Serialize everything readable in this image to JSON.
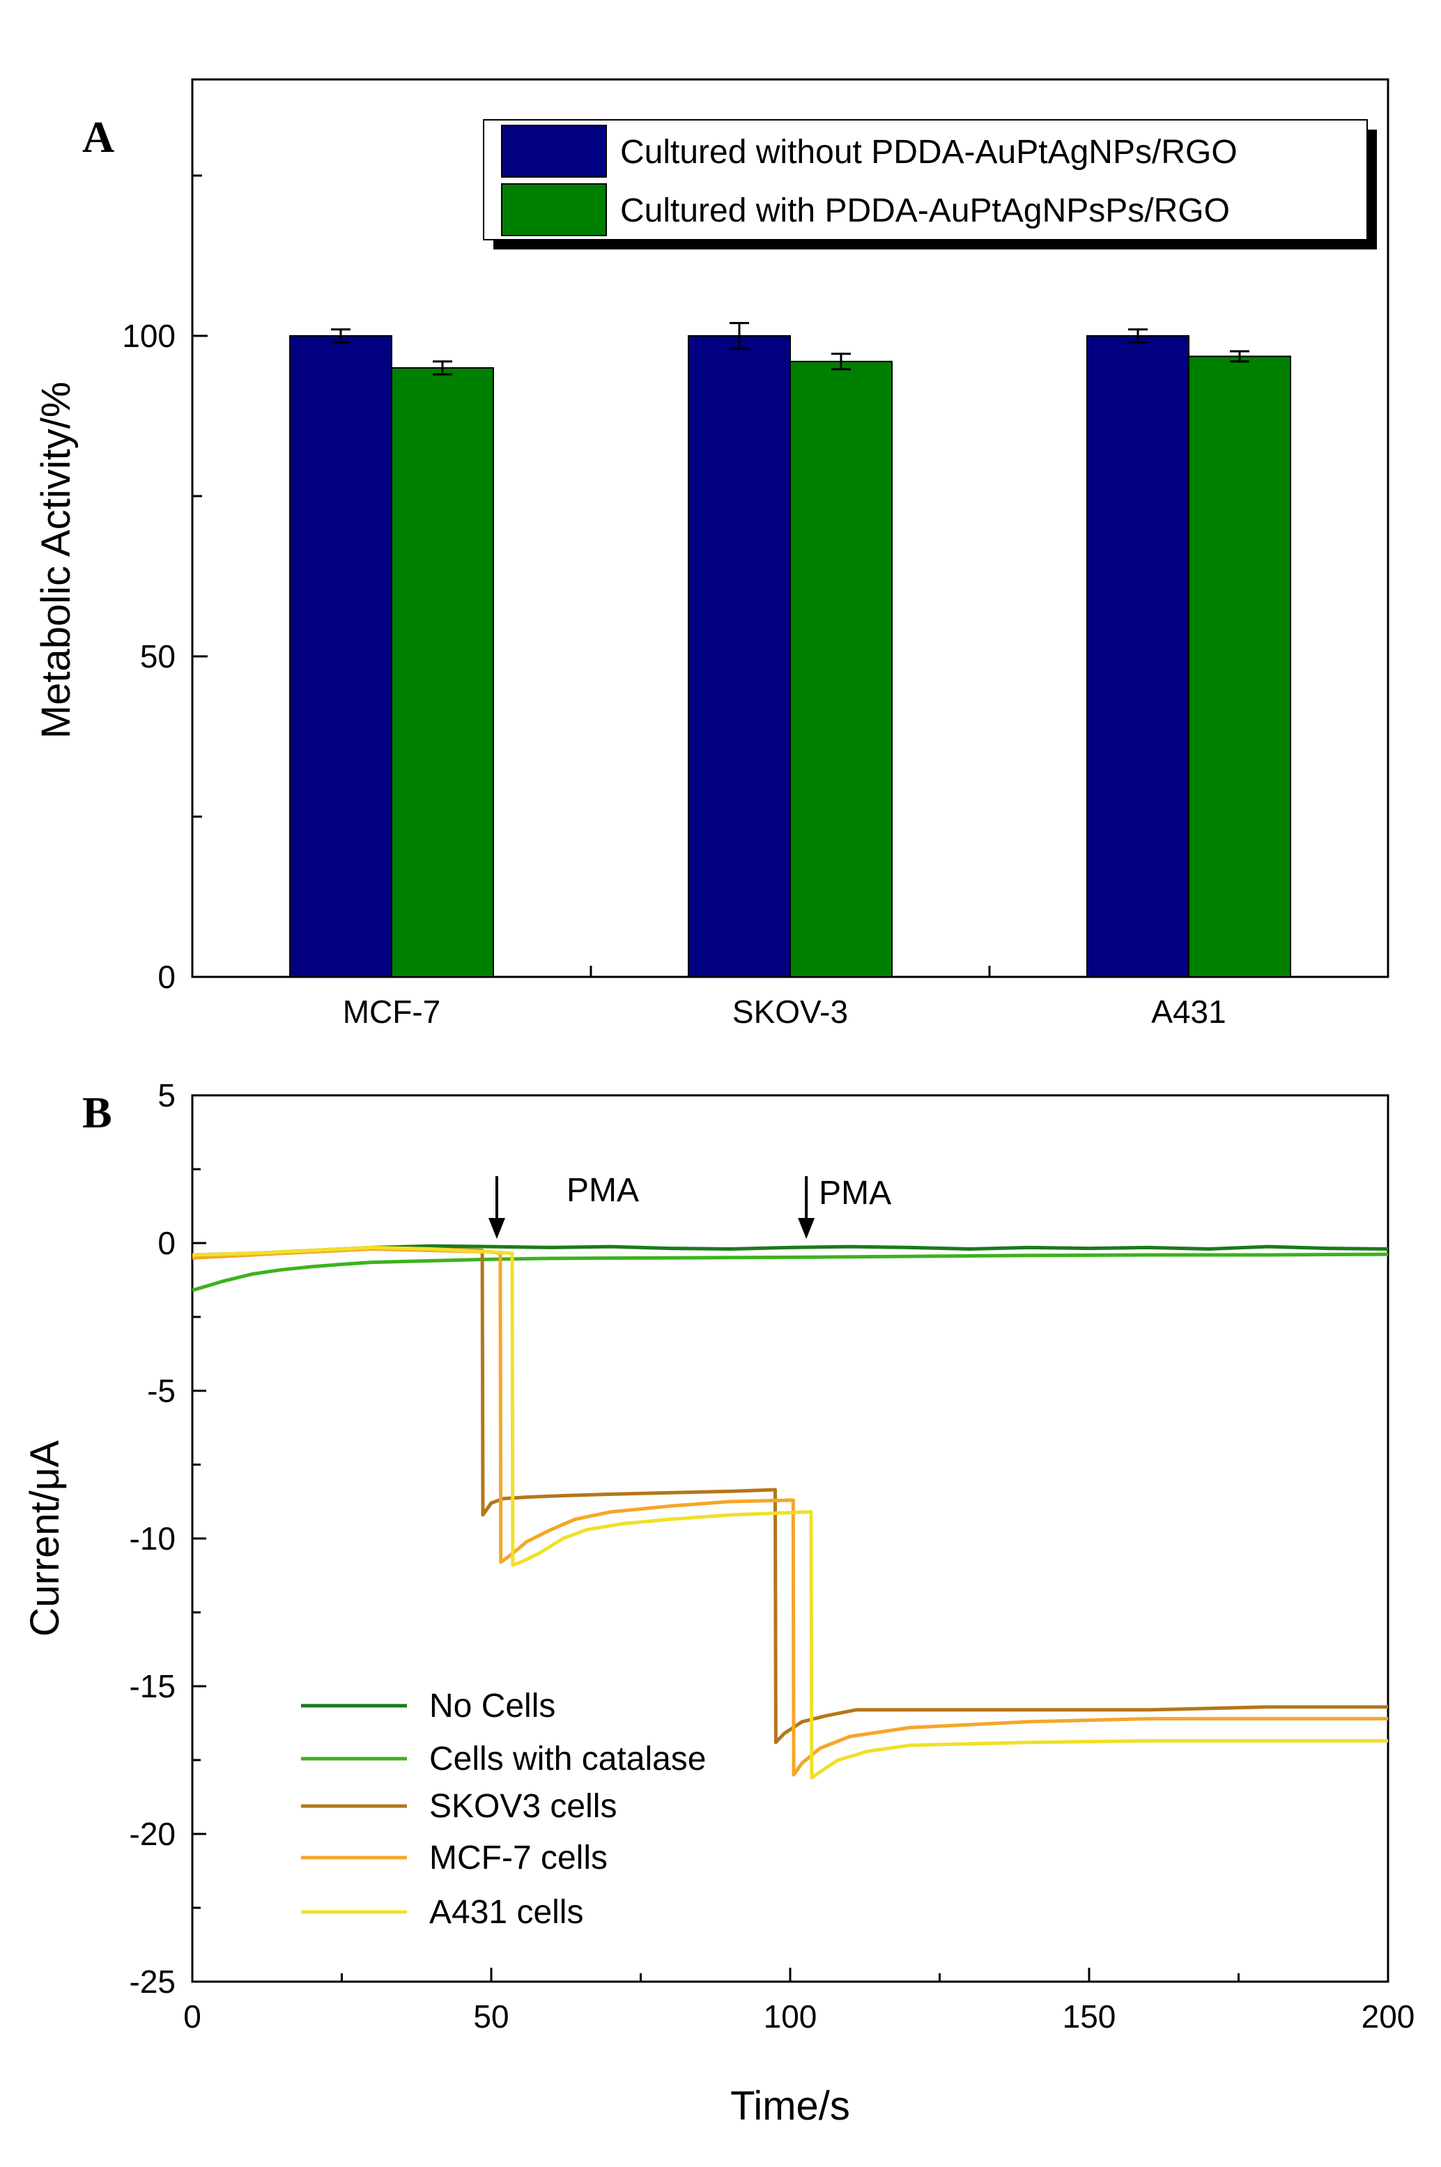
{
  "chart_data": [
    {
      "panel": "A",
      "type": "bar",
      "title": "",
      "xlabel": "",
      "ylabel": "Metabolic Activity/%",
      "ylim": [
        0,
        140
      ],
      "yticks": [
        0,
        50,
        100
      ],
      "categories": [
        "MCF-7",
        "SKOV-3",
        "A431"
      ],
      "series": [
        {
          "name": "Cultured without PDDA-AuPtAgNPs/RGO",
          "color": "#000080",
          "values": [
            100,
            100,
            100
          ],
          "errors": [
            1.0,
            2.0,
            1.0
          ]
        },
        {
          "name": "Cultured with PDDA-AuPtAgNPsPs/RGO",
          "color": "#008000",
          "values": [
            95,
            96,
            96.8
          ],
          "errors": [
            1.0,
            1.2,
            0.8
          ]
        }
      ],
      "legend_position": "top-right"
    },
    {
      "panel": "B",
      "type": "line",
      "title": "",
      "xlabel": "Time/s",
      "ylabel": "Current/μA",
      "xlim": [
        0,
        200
      ],
      "ylim": [
        -25,
        5
      ],
      "xticks": [
        0,
        50,
        100,
        150,
        200
      ],
      "yticks": [
        5,
        0,
        -5,
        -10,
        -15,
        -20,
        -25
      ],
      "series": [
        {
          "name": "No Cells",
          "color": "#1b7a1b",
          "x": [
            0,
            10,
            20,
            30,
            40,
            50,
            60,
            70,
            80,
            90,
            100,
            110,
            120,
            130,
            140,
            150,
            160,
            170,
            180,
            190,
            200
          ],
          "y": [
            -0.4,
            -0.35,
            -0.25,
            -0.15,
            -0.1,
            -0.12,
            -0.15,
            -0.12,
            -0.18,
            -0.2,
            -0.15,
            -0.12,
            -0.15,
            -0.2,
            -0.15,
            -0.18,
            -0.15,
            -0.2,
            -0.12,
            -0.18,
            -0.2
          ]
        },
        {
          "name": "Cells with catalase",
          "color": "#3cb21e",
          "x": [
            0,
            5,
            10,
            15,
            20,
            25,
            30,
            40,
            50,
            60,
            80,
            100,
            120,
            140,
            160,
            180,
            200
          ],
          "y": [
            -1.6,
            -1.3,
            -1.05,
            -0.9,
            -0.8,
            -0.72,
            -0.65,
            -0.6,
            -0.55,
            -0.52,
            -0.5,
            -0.48,
            -0.45,
            -0.42,
            -0.4,
            -0.4,
            -0.38
          ]
        },
        {
          "name": "SKOV3 cells",
          "color": "#b5761a",
          "x": [
            0,
            10,
            20,
            30,
            40,
            48.5,
            48.6,
            50,
            52,
            56,
            62,
            70,
            80,
            90,
            97.5,
            97.6,
            99,
            102,
            106,
            111,
            120,
            140,
            160,
            180,
            200
          ],
          "y": [
            -0.5,
            -0.4,
            -0.25,
            -0.15,
            -0.2,
            -0.25,
            -9.2,
            -8.8,
            -8.65,
            -8.6,
            -8.55,
            -8.5,
            -8.45,
            -8.4,
            -8.35,
            -16.9,
            -16.6,
            -16.2,
            -16.0,
            -15.8,
            -15.8,
            -15.8,
            -15.8,
            -15.7,
            -15.7
          ]
        },
        {
          "name": "MCF-7 cells",
          "color": "#f5a628",
          "x": [
            0,
            10,
            20,
            30,
            40,
            50,
            51.5,
            51.6,
            53,
            56,
            60,
            64,
            70,
            80,
            90,
            100.5,
            100.6,
            102,
            105,
            110,
            120,
            140,
            160,
            180,
            200
          ],
          "y": [
            -0.5,
            -0.4,
            -0.3,
            -0.2,
            -0.25,
            -0.3,
            -0.35,
            -10.8,
            -10.6,
            -10.1,
            -9.7,
            -9.35,
            -9.1,
            -8.9,
            -8.75,
            -8.7,
            -18.0,
            -17.6,
            -17.1,
            -16.7,
            -16.4,
            -16.2,
            -16.1,
            -16.1,
            -16.1
          ]
        },
        {
          "name": "A431 cells",
          "color": "#f0e02a",
          "x": [
            0,
            10,
            20,
            30,
            40,
            50,
            53.5,
            53.6,
            55,
            58,
            62,
            66,
            72,
            80,
            90,
            103.5,
            103.6,
            105,
            108,
            113,
            120,
            140,
            160,
            180,
            200
          ],
          "y": [
            -0.4,
            -0.35,
            -0.25,
            -0.15,
            -0.2,
            -0.3,
            -0.35,
            -10.9,
            -10.8,
            -10.5,
            -10.0,
            -9.7,
            -9.5,
            -9.35,
            -9.2,
            -9.1,
            -18.1,
            -17.9,
            -17.5,
            -17.2,
            -17.0,
            -16.9,
            -16.85,
            -16.85,
            -16.85
          ]
        }
      ],
      "annotations": [
        {
          "text": "PMA",
          "x": 50
        },
        {
          "text": "PMA",
          "x": 102
        }
      ],
      "legend_position": "bottom-left"
    }
  ]
}
